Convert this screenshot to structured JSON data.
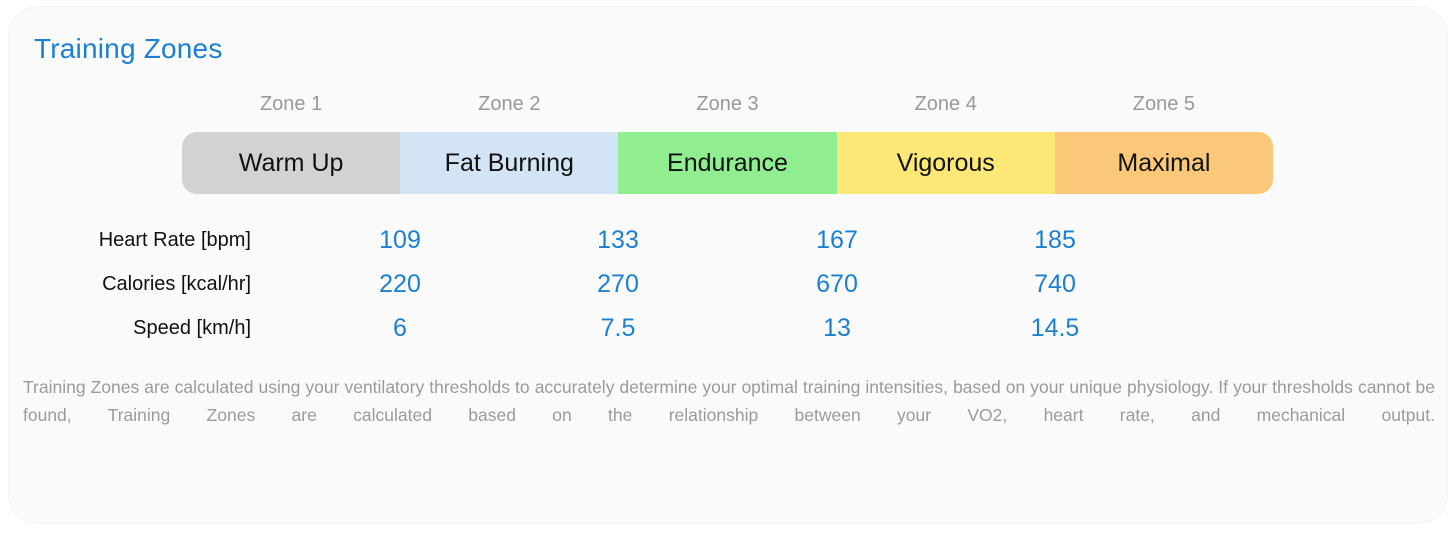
{
  "title": "Training Zones",
  "colors": {
    "accent": "#1b7fd2",
    "zone_label_gray": "#999999",
    "description_gray": "#9b9b9b",
    "card_background": "#fafafa",
    "zone_warm_up": "#d2d2d2",
    "zone_fat_burning": "#d3e5f4",
    "zone_endurance": "#90ee90",
    "zone_vigorous": "#fbe876",
    "zone_maximal": "#fac878"
  },
  "zones": [
    {
      "label": "Zone 1",
      "name": "Warm Up",
      "color": "#d2d2d2"
    },
    {
      "label": "Zone 2",
      "name": "Fat Burning",
      "color": "#d3e5f4"
    },
    {
      "label": "Zone 3",
      "name": "Endurance",
      "color": "#90ee90"
    },
    {
      "label": "Zone 4",
      "name": "Vigorous",
      "color": "#fbe876"
    },
    {
      "label": "Zone 5",
      "name": "Maximal",
      "color": "#fac878"
    }
  ],
  "thresholds": {
    "rows": [
      {
        "label": "Heart Rate [bpm]",
        "values": [
          "109",
          "133",
          "167",
          "185"
        ]
      },
      {
        "label": "Calories [kcal/hr]",
        "values": [
          "220",
          "270",
          "670",
          "740"
        ]
      },
      {
        "label": "Speed [km/h]",
        "values": [
          "6",
          "7.5",
          "13",
          "14.5"
        ]
      }
    ]
  },
  "description": "Training Zones are calculated using your ventilatory thresholds to accurately determine your optimal training intensities, based on your unique physiology. If your thresholds cannot be found, Training Zones are calculated based on the relationship between your VO2, heart rate, and mechanical output."
}
